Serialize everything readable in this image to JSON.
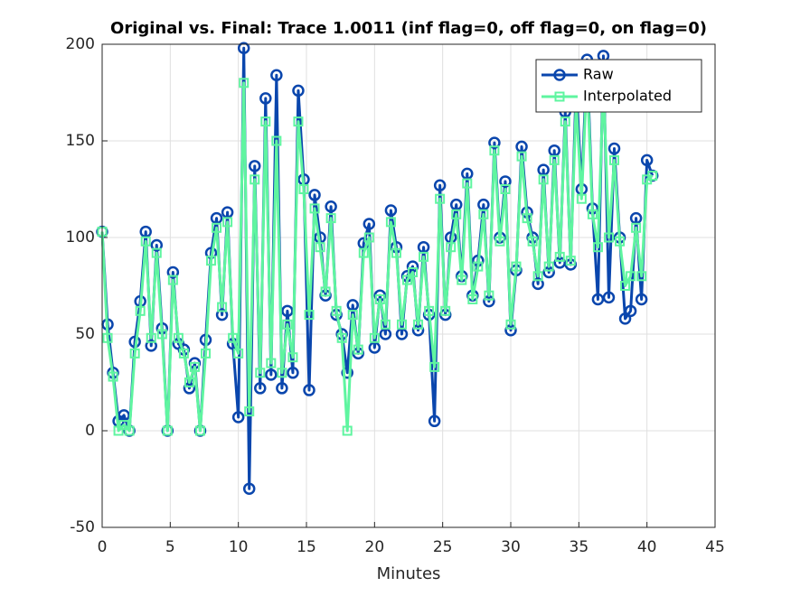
{
  "chart_data": {
    "type": "line",
    "title": "Original vs. Final: Trace 1.0011 (inf flag=0, off flag=0, on flag=0)",
    "x_label": "Minutes",
    "x": [
      0,
      0.4,
      0.8,
      1.2,
      1.6,
      2,
      2.4,
      2.8,
      3.2,
      3.6,
      4,
      4.4,
      4.8,
      5.2,
      5.6,
      6,
      6.4,
      6.8,
      7.2,
      7.6,
      8,
      8.4,
      8.8,
      9.2,
      9.6,
      10,
      10.4,
      10.8,
      11.2,
      11.6,
      12,
      12.4,
      12.8,
      13.2,
      13.6,
      14,
      14.4,
      14.8,
      15.2,
      15.6,
      16,
      16.4,
      16.8,
      17.2,
      17.6,
      18,
      18.4,
      18.8,
      19.2,
      19.6,
      20,
      20.4,
      20.8,
      21.2,
      21.6,
      22,
      22.4,
      22.8,
      23.2,
      23.6,
      24,
      24.4,
      24.8,
      25.2,
      25.6,
      26,
      26.4,
      26.8,
      27.2,
      27.6,
      28,
      28.4,
      28.8,
      29.2,
      29.6,
      30,
      30.4,
      30.8,
      31.2,
      31.6,
      32,
      32.4,
      32.8,
      33.2,
      33.6,
      34,
      34.4,
      34.8,
      35.2,
      35.6,
      36,
      36.4,
      36.8,
      37.2,
      37.6,
      38,
      38.4,
      38.8,
      39.2,
      39.6,
      40,
      40.4
    ],
    "series": [
      {
        "name": "Raw",
        "color": "#0a46ad",
        "marker": "circle",
        "values": [
          103,
          55,
          30,
          5,
          8,
          0,
          46,
          67,
          103,
          44,
          96,
          53,
          0,
          82,
          45,
          42,
          22,
          35,
          0,
          47,
          92,
          110,
          60,
          113,
          45,
          7,
          198,
          -30,
          137,
          22,
          172,
          29,
          184,
          22,
          62,
          30,
          176,
          130,
          21,
          122,
          100,
          70,
          116,
          60,
          50,
          30,
          65,
          40,
          97,
          107,
          43,
          70,
          50,
          114,
          95,
          50,
          80,
          85,
          52,
          95,
          60,
          5,
          127,
          60,
          100,
          117,
          80,
          133,
          70,
          88,
          117,
          67,
          149,
          100,
          129,
          52,
          83,
          147,
          113,
          100,
          76,
          135,
          82,
          145,
          87,
          165,
          86,
          180,
          125,
          192,
          115,
          68,
          194,
          69,
          146,
          100,
          58,
          62,
          110,
          68,
          140,
          132
        ]
      },
      {
        "name": "Interpolated",
        "color": "#5ff5a0",
        "marker": "square",
        "values": [
          103,
          48,
          28,
          0,
          3,
          0,
          40,
          62,
          98,
          48,
          92,
          50,
          0,
          78,
          48,
          40,
          25,
          33,
          0,
          40,
          88,
          105,
          64,
          108,
          48,
          40,
          180,
          10,
          130,
          30,
          160,
          35,
          150,
          30,
          55,
          38,
          160,
          125,
          60,
          115,
          95,
          72,
          110,
          62,
          48,
          0,
          60,
          42,
          92,
          100,
          48,
          68,
          55,
          108,
          92,
          55,
          78,
          82,
          55,
          90,
          62,
          33,
          120,
          62,
          95,
          112,
          78,
          128,
          68,
          85,
          112,
          70,
          145,
          98,
          125,
          55,
          85,
          142,
          110,
          98,
          80,
          130,
          85,
          140,
          90,
          160,
          88,
          170,
          120,
          185,
          112,
          95,
          180,
          100,
          140,
          98,
          75,
          80,
          105,
          80,
          130,
          132
        ]
      }
    ],
    "xlim": [
      0,
      45
    ],
    "xticks": [
      0,
      5,
      10,
      15,
      20,
      25,
      30,
      35,
      40,
      45
    ],
    "ylim": [
      -50,
      200
    ],
    "yticks": [
      -50,
      0,
      50,
      100,
      150,
      200
    ],
    "grid": true,
    "legend": "northeast"
  }
}
